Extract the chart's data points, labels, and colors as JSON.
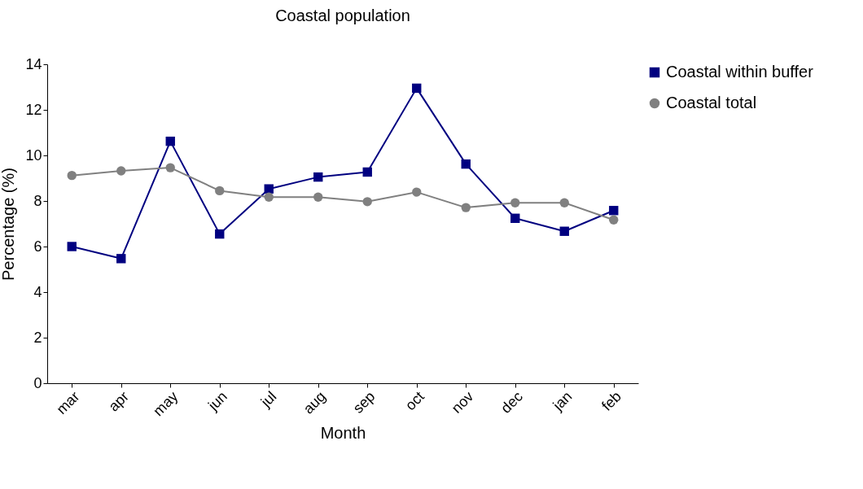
{
  "chart_data": {
    "type": "line",
    "title": "Coastal population",
    "xlabel": "Month",
    "ylabel": "Percentage (%)",
    "categories": [
      "mar",
      "apr",
      "may",
      "jun",
      "jul",
      "aug",
      "sep",
      "oct",
      "nov",
      "dec",
      "jan",
      "feb"
    ],
    "series": [
      {
        "name": "Coastal within buffer",
        "color": "#000080",
        "marker": "square",
        "values": [
          6.0,
          5.47,
          10.62,
          6.55,
          8.53,
          9.05,
          9.27,
          12.95,
          9.62,
          7.24,
          6.67,
          7.58
        ]
      },
      {
        "name": "Coastal total",
        "color": "#808080",
        "marker": "circle",
        "values": [
          9.12,
          9.32,
          9.46,
          8.45,
          8.17,
          8.17,
          7.97,
          8.39,
          7.71,
          7.92,
          7.92,
          7.17
        ]
      }
    ],
    "ylim": [
      0,
      14
    ],
    "yticks": [
      0,
      2,
      4,
      6,
      8,
      10,
      12,
      14
    ],
    "grid": false,
    "legend": "right"
  }
}
